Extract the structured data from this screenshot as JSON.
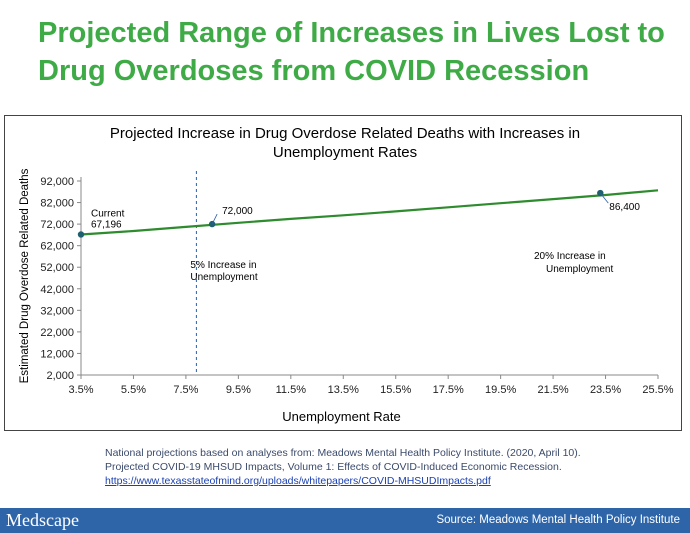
{
  "slide": {
    "title": "Projected Range of Increases in Lives Lost to Drug Overdoses from COVID Recession"
  },
  "chart_data": {
    "type": "line",
    "title": "Projected Increase in Drug Overdose Related Deaths with Increases in Unemployment Rates",
    "xlabel": "Unemployment Rate",
    "ylabel": "Estimated Drug Overdose Related Deaths",
    "xlim": [
      3.5,
      25.5
    ],
    "ylim": [
      2000,
      92000
    ],
    "x_tick_labels": [
      "3.5%",
      "5.5%",
      "7.5%",
      "9.5%",
      "11.5%",
      "13.5%",
      "15.5%",
      "17.5%",
      "19.5%",
      "21.5%",
      "23.5%",
      "25.5%"
    ],
    "y_tick_labels": [
      "92,000",
      "82,000",
      "72,000",
      "62,000",
      "52,000",
      "42,000",
      "32,000",
      "22,000",
      "12,000",
      "2,000"
    ],
    "series": [
      {
        "color": "#2e8b2e",
        "x": [
          3.5,
          5.5,
          7.5,
          9.5,
          11.5,
          13.5,
          15.5,
          17.5,
          19.5,
          21.5,
          23.5,
          25.5
        ],
        "y": [
          67196,
          68800,
          70700,
          72600,
          74400,
          76100,
          77900,
          79800,
          81700,
          83600,
          85500,
          87700
        ]
      }
    ],
    "points": [
      {
        "x": 3.5,
        "y": 67196,
        "label_title": "Current",
        "label_value": "67,196"
      },
      {
        "x": 8.5,
        "y": 72000,
        "label_value": "72,000"
      },
      {
        "x": 23.3,
        "y": 86400,
        "label_value": "86,400"
      }
    ],
    "reference_line": {
      "x": 7.9,
      "style": "dashed",
      "color": "#2e5fa8"
    },
    "annotations": [
      {
        "id": "five",
        "line1": "5% Increase in",
        "line2": "Unemployment"
      },
      {
        "id": "twenty",
        "line1": "20% Increase in",
        "line2": "Unemployment"
      }
    ],
    "grid": false
  },
  "source_note": {
    "text": "National projections based on analyses from: Meadows Mental Health Policy Institute. (2020, April 10). Projected COVID-19 MHSUD Impacts, Volume 1: Effects of COVID-Induced Economic Recession.",
    "link": "https://www.texasstateofmind.org/uploads/whitepapers/COVID-MHSUDImpacts.pdf"
  },
  "footer": {
    "logo": "Medscape",
    "source": "Source: Meadows Mental Health Policy Institute",
    "background": "#2e65a8"
  }
}
